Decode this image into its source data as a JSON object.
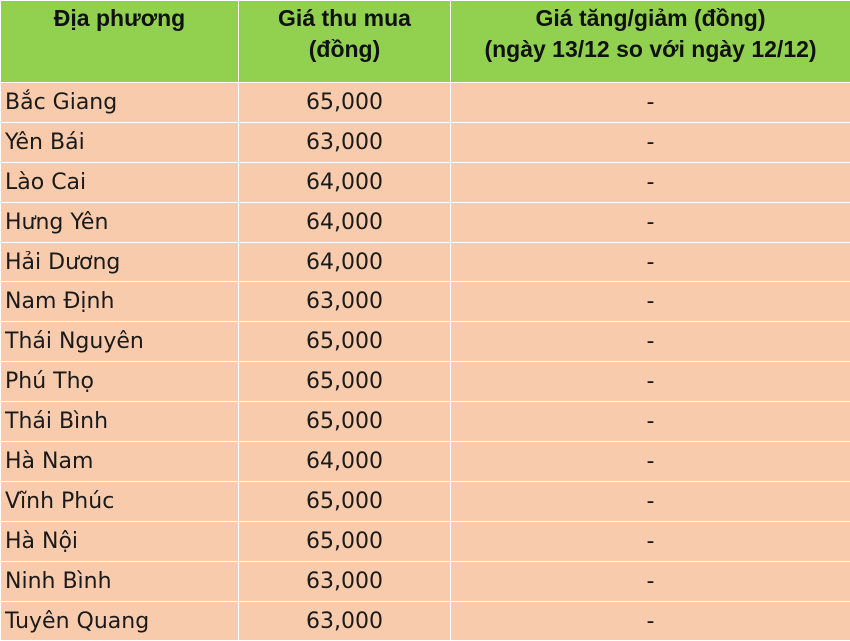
{
  "table": {
    "headers": [
      {
        "line1": "Địa phương",
        "line2": ""
      },
      {
        "line1": "Giá thu mua",
        "line2": "(đồng)"
      },
      {
        "line1": "Giá tăng/giảm (đồng)",
        "line2": "(ngày 13/12 so với ngày 12/12)"
      }
    ],
    "rows": [
      {
        "region": "Bắc Giang",
        "price": "65,000",
        "change": "-"
      },
      {
        "region": "Yên Bái",
        "price": "63,000",
        "change": "-"
      },
      {
        "region": "Lào Cai",
        "price": "64,000",
        "change": "-"
      },
      {
        "region": "Hưng Yên",
        "price": "64,000",
        "change": "-"
      },
      {
        "region": "Hải Dương",
        "price": "64,000",
        "change": "-"
      },
      {
        "region": "Nam Định",
        "price": "63,000",
        "change": "-"
      },
      {
        "region": "Thái Nguyên",
        "price": "65,000",
        "change": "-"
      },
      {
        "region": "Phú Thọ",
        "price": "65,000",
        "change": "-"
      },
      {
        "region": "Thái Bình",
        "price": "65,000",
        "change": "-"
      },
      {
        "region": "Hà Nam",
        "price": "64,000",
        "change": "-"
      },
      {
        "region": "Vĩnh Phúc",
        "price": "65,000",
        "change": "-"
      },
      {
        "region": "Hà Nội",
        "price": "65,000",
        "change": "-"
      },
      {
        "region": "Ninh Bình",
        "price": "63,000",
        "change": "-"
      },
      {
        "region": "Tuyên Quang",
        "price": "63,000",
        "change": "-"
      }
    ]
  },
  "colors": {
    "header_bg": "#92d050",
    "row_bg": "#f8cbad"
  }
}
